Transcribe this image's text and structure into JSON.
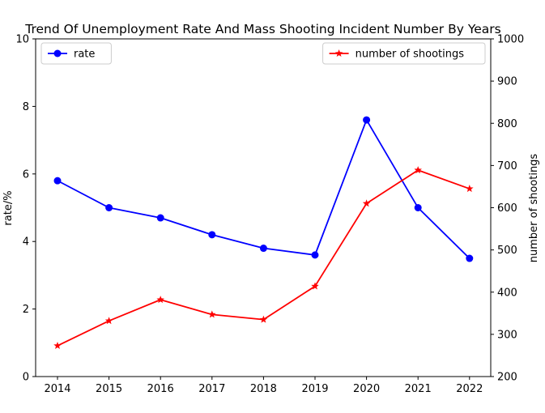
{
  "chart_data": {
    "type": "line",
    "title": "Trend Of Unemployment Rate And Mass Shooting Incident Number By Years",
    "x": [
      "2014",
      "2015",
      "2016",
      "2017",
      "2018",
      "2019",
      "2020",
      "2021",
      "2022"
    ],
    "xlabel": "",
    "y_left": {
      "label": "rate/%",
      "lim": [
        0,
        10
      ],
      "ticks": [
        "0",
        "2",
        "4",
        "6",
        "8",
        "10"
      ]
    },
    "y_right": {
      "label": "number of shootings",
      "lim": [
        200,
        1000
      ],
      "ticks": [
        "200",
        "300",
        "400",
        "500",
        "600",
        "700",
        "800",
        "900",
        "1000"
      ]
    },
    "series": [
      {
        "name": "rate",
        "axis": "left",
        "color": "#0000ff",
        "marker": "circle",
        "values": [
          5.8,
          5.0,
          4.7,
          4.2,
          3.8,
          3.6,
          7.6,
          5.0,
          3.5
        ]
      },
      {
        "name": "number of shootings",
        "axis": "right",
        "color": "#ff0000",
        "marker": "star",
        "values": [
          273,
          332,
          382,
          347,
          335,
          414,
          610,
          689,
          645
        ]
      }
    ],
    "legends": {
      "rate": "top-left",
      "number of shootings": "top-right"
    },
    "grid": false
  }
}
